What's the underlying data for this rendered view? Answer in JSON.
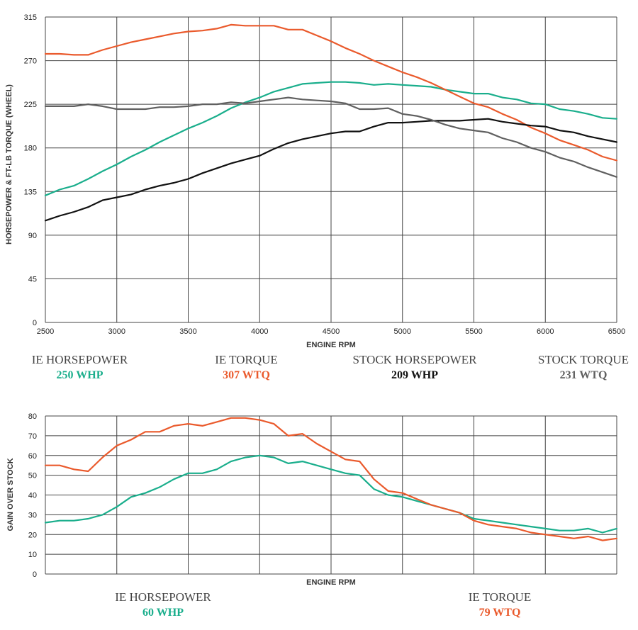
{
  "colors": {
    "ie_hp": "#1aae8c",
    "ie_tq": "#ea5a2c",
    "stock_hp": "#111111",
    "stock_tq": "#606060"
  },
  "chart_data": [
    {
      "type": "line",
      "title": "",
      "xlabel": "ENGINE RPM",
      "ylabel": "HORSEPOWER & FT-LB TORQUE (WHEEL)",
      "xlim": [
        2500,
        6500
      ],
      "ylim": [
        0,
        315
      ],
      "xticks": [
        "2500",
        "3000",
        "3500",
        "4000",
        "4500",
        "5000",
        "5500",
        "6000",
        "6500"
      ],
      "yticks": [
        "0",
        "45",
        "90",
        "135",
        "180",
        "225",
        "270",
        "315"
      ],
      "grid": true,
      "series": [
        {
          "name": "IE HORSEPOWER",
          "color": "ie_hp",
          "x": [
            2500,
            2600,
            2700,
            2800,
            2900,
            3000,
            3100,
            3200,
            3300,
            3400,
            3500,
            3600,
            3700,
            3800,
            3900,
            4000,
            4100,
            4200,
            4300,
            4400,
            4500,
            4600,
            4700,
            4800,
            4900,
            5000,
            5100,
            5200,
            5300,
            5400,
            5500,
            5600,
            5700,
            5800,
            5900,
            6000,
            6100,
            6200,
            6300,
            6400,
            6500
          ],
          "y": [
            131,
            137,
            141,
            148,
            156,
            163,
            171,
            178,
            186,
            193,
            200,
            206,
            213,
            221,
            227,
            232,
            238,
            242,
            246,
            247,
            248,
            248,
            247,
            245,
            246,
            245,
            244,
            243,
            240,
            238,
            236,
            236,
            232,
            230,
            226,
            225,
            220,
            218,
            215,
            211,
            210
          ]
        },
        {
          "name": "IE TORQUE",
          "color": "ie_tq",
          "x": [
            2500,
            2600,
            2700,
            2800,
            2900,
            3000,
            3100,
            3200,
            3300,
            3400,
            3500,
            3600,
            3700,
            3800,
            3900,
            4000,
            4100,
            4200,
            4300,
            4400,
            4500,
            4600,
            4700,
            4800,
            4900,
            5000,
            5100,
            5200,
            5300,
            5400,
            5500,
            5600,
            5700,
            5800,
            5900,
            6000,
            6100,
            6200,
            6300,
            6400,
            6500
          ],
          "y": [
            277,
            277,
            276,
            276,
            281,
            285,
            289,
            292,
            295,
            298,
            300,
            301,
            303,
            307,
            306,
            306,
            306,
            302,
            302,
            296,
            290,
            283,
            277,
            270,
            264,
            258,
            253,
            247,
            240,
            233,
            226,
            222,
            215,
            209,
            201,
            195,
            188,
            183,
            178,
            171,
            167
          ]
        },
        {
          "name": "STOCK HORSEPOWER",
          "color": "stock_hp",
          "x": [
            2500,
            2600,
            2700,
            2800,
            2900,
            3000,
            3100,
            3200,
            3300,
            3400,
            3500,
            3600,
            3700,
            3800,
            3900,
            4000,
            4100,
            4200,
            4300,
            4400,
            4500,
            4600,
            4700,
            4800,
            4900,
            5000,
            5100,
            5200,
            5300,
            5400,
            5500,
            5600,
            5700,
            5800,
            5900,
            6000,
            6100,
            6200,
            6300,
            6400,
            6500
          ],
          "y": [
            105,
            110,
            114,
            119,
            126,
            129,
            132,
            137,
            141,
            144,
            148,
            154,
            159,
            164,
            168,
            172,
            179,
            185,
            189,
            192,
            195,
            197,
            197,
            202,
            206,
            206,
            207,
            208,
            208,
            208,
            209,
            210,
            207,
            205,
            203,
            202,
            198,
            196,
            192,
            189,
            186
          ]
        },
        {
          "name": "STOCK TORQUE",
          "color": "stock_tq",
          "x": [
            2500,
            2600,
            2700,
            2800,
            2900,
            3000,
            3100,
            3200,
            3300,
            3400,
            3500,
            3600,
            3700,
            3800,
            3900,
            4000,
            4100,
            4200,
            4300,
            4400,
            4500,
            4600,
            4700,
            4800,
            4900,
            5000,
            5100,
            5200,
            5300,
            5400,
            5500,
            5600,
            5700,
            5800,
            5900,
            6000,
            6100,
            6200,
            6300,
            6400,
            6500
          ],
          "y": [
            223,
            223,
            223,
            225,
            223,
            220,
            220,
            220,
            222,
            222,
            223,
            225,
            225,
            227,
            226,
            228,
            230,
            232,
            230,
            229,
            228,
            226,
            220,
            220,
            221,
            215,
            213,
            209,
            204,
            200,
            198,
            196,
            190,
            186,
            180,
            176,
            170,
            166,
            160,
            155,
            150
          ]
        }
      ],
      "legend": [
        {
          "name": "IE HORSEPOWER",
          "value": "250 WHP",
          "color": "ie_hp"
        },
        {
          "name": "IE TORQUE",
          "value": "307 WTQ",
          "color": "ie_tq"
        },
        {
          "name": "STOCK HORSEPOWER",
          "value": "209 WHP",
          "color": "stock_hp"
        },
        {
          "name": "STOCK TORQUE",
          "value": "231 WTQ",
          "color": "stock_tq"
        }
      ]
    },
    {
      "type": "line",
      "title": "",
      "xlabel": "ENGINE RPM",
      "ylabel": "GAIN OVER STOCK",
      "xlim": [
        2500,
        6500
      ],
      "ylim": [
        0,
        80
      ],
      "xticks": [],
      "yticks": [
        "0",
        "10",
        "20",
        "30",
        "40",
        "50",
        "60",
        "70",
        "80"
      ],
      "grid": true,
      "series": [
        {
          "name": "IE HORSEPOWER",
          "color": "ie_hp",
          "x": [
            2500,
            2600,
            2700,
            2800,
            2900,
            3000,
            3100,
            3200,
            3300,
            3400,
            3500,
            3600,
            3700,
            3800,
            3900,
            4000,
            4100,
            4200,
            4300,
            4400,
            4500,
            4600,
            4700,
            4800,
            4900,
            5000,
            5100,
            5200,
            5300,
            5400,
            5500,
            5600,
            5700,
            5800,
            5900,
            6000,
            6100,
            6200,
            6300,
            6400,
            6500
          ],
          "y": [
            26,
            27,
            27,
            28,
            30,
            34,
            39,
            41,
            44,
            48,
            51,
            51,
            53,
            57,
            59,
            60,
            59,
            56,
            57,
            55,
            53,
            51,
            50,
            43,
            40,
            39,
            37,
            35,
            33,
            31,
            28,
            27,
            26,
            25,
            24,
            23,
            22,
            22,
            23,
            21,
            23
          ]
        },
        {
          "name": "IE TORQUE",
          "color": "ie_tq",
          "x": [
            2500,
            2600,
            2700,
            2800,
            2900,
            3000,
            3100,
            3200,
            3300,
            3400,
            3500,
            3600,
            3700,
            3800,
            3900,
            4000,
            4100,
            4200,
            4300,
            4400,
            4500,
            4600,
            4700,
            4800,
            4900,
            5000,
            5100,
            5200,
            5300,
            5400,
            5500,
            5600,
            5700,
            5800,
            5900,
            6000,
            6100,
            6200,
            6300,
            6400,
            6500
          ],
          "y": [
            55,
            55,
            53,
            52,
            59,
            65,
            68,
            72,
            72,
            75,
            76,
            75,
            77,
            79,
            79,
            78,
            76,
            70,
            71,
            66,
            62,
            58,
            57,
            48,
            42,
            41,
            38,
            35,
            33,
            31,
            27,
            25,
            24,
            23,
            21,
            20,
            19,
            18,
            19,
            17,
            18
          ]
        }
      ],
      "legend": [
        {
          "name": "IE HORSEPOWER",
          "value": "60 WHP",
          "color": "ie_hp"
        },
        {
          "name": "IE TORQUE",
          "value": "79 WTQ",
          "color": "ie_tq"
        }
      ]
    }
  ]
}
